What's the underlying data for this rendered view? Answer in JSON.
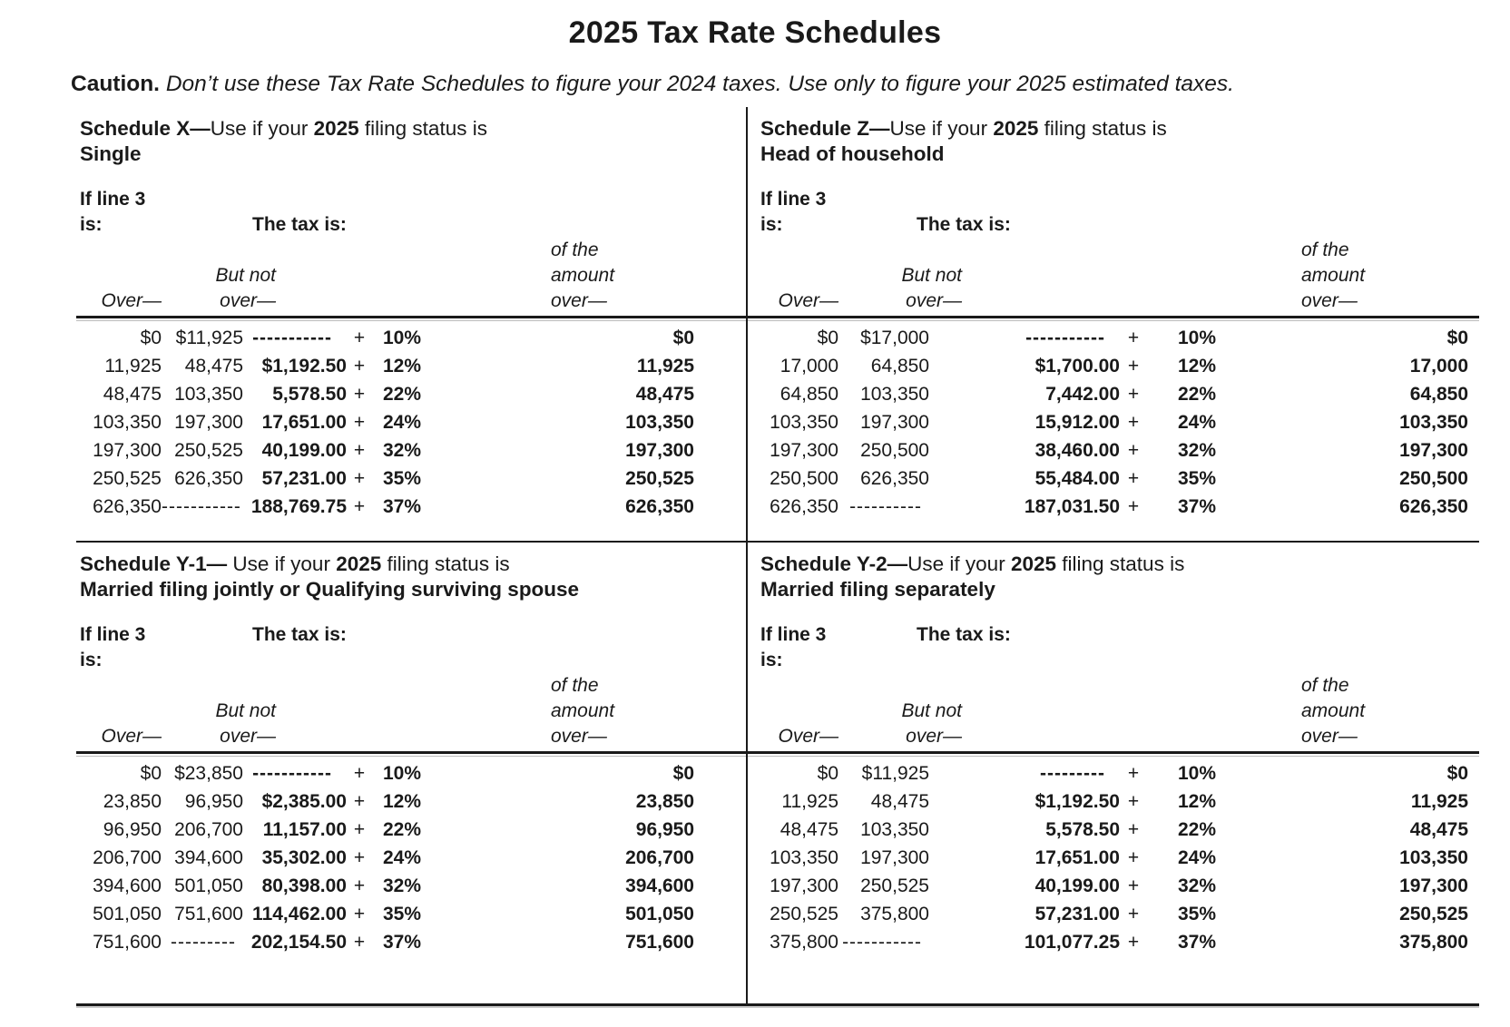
{
  "page": {
    "title": "2025 Tax Rate Schedules",
    "caution_label": "Caution.",
    "caution_text": "Don’t use these Tax Rate Schedules to figure your 2024 taxes. Use only to figure your 2025 estimated taxes."
  },
  "labels": {
    "if_line3_line1": "If line 3",
    "if_line3_line2": "is:",
    "tax_is": "The tax is:",
    "over": "Over—",
    "but_not_line1": "But not",
    "but_not_line2": "over—",
    "amount_line1": "of the",
    "amount_line2": "amount",
    "amount_line3": "over—",
    "plus": "+"
  },
  "schedules": [
    {
      "id": "schedule-x",
      "title_prefix": "Schedule X—",
      "title_mid": "Use if your ",
      "title_year": "2025",
      "title_suffix": " filing status is",
      "status": "Single",
      "rows": [
        {
          "over": "$0",
          "but_not": "$11,925",
          "tax": "-----------",
          "pct": "10%",
          "amount": "$0"
        },
        {
          "over": "11,925",
          "but_not": "48,475",
          "tax": "$1,192.50",
          "pct": "12%",
          "amount": "11,925"
        },
        {
          "over": "48,475",
          "but_not": "103,350",
          "tax": "5,578.50",
          "pct": "22%",
          "amount": "48,475"
        },
        {
          "over": "103,350",
          "but_not": "197,300",
          "tax": "17,651.00",
          "pct": "24%",
          "amount": "103,350"
        },
        {
          "over": "197,300",
          "but_not": "250,525",
          "tax": "40,199.00",
          "pct": "32%",
          "amount": "197,300"
        },
        {
          "over": "250,525",
          "but_not": "626,350",
          "tax": "57,231.00",
          "pct": "35%",
          "amount": "250,525"
        },
        {
          "over": "626,350",
          "but_not": "-----------",
          "tax": "188,769.75",
          "pct": "37%",
          "amount": "626,350"
        }
      ]
    },
    {
      "id": "schedule-z",
      "title_prefix": "Schedule Z—",
      "title_mid": "Use if your ",
      "title_year": "2025",
      "title_suffix": " filing status is",
      "status": "Head of household",
      "rows": [
        {
          "over": "$0",
          "but_not": "$17,000",
          "tax": "-----------",
          "pct": "10%",
          "amount": "$0"
        },
        {
          "over": "17,000",
          "but_not": "64,850",
          "tax": "$1,700.00",
          "pct": "12%",
          "amount": "17,000"
        },
        {
          "over": "64,850",
          "but_not": "103,350",
          "tax": "7,442.00",
          "pct": "22%",
          "amount": "64,850"
        },
        {
          "over": "103,350",
          "but_not": "197,300",
          "tax": "15,912.00",
          "pct": "24%",
          "amount": "103,350"
        },
        {
          "over": "197,300",
          "but_not": "250,500",
          "tax": "38,460.00",
          "pct": "32%",
          "amount": "197,300"
        },
        {
          "over": "250,500",
          "but_not": "626,350",
          "tax": "55,484.00",
          "pct": "35%",
          "amount": "250,500"
        },
        {
          "over": "626,350",
          "but_not": "----------",
          "tax": "187,031.50",
          "pct": "37%",
          "amount": "626,350"
        }
      ]
    },
    {
      "id": "schedule-y1",
      "title_prefix": "Schedule Y-1—",
      "title_mid": " Use if your ",
      "title_year": "2025",
      "title_suffix": " filing status is",
      "status": "Married filing jointly or Qualifying surviving spouse",
      "rows": [
        {
          "over": "$0",
          "but_not": "$23,850",
          "tax": "-----------",
          "pct": "10%",
          "amount": "$0"
        },
        {
          "over": "23,850",
          "but_not": "96,950",
          "tax": "$2,385.00",
          "pct": "12%",
          "amount": "23,850"
        },
        {
          "over": "96,950",
          "but_not": "206,700",
          "tax": "11,157.00",
          "pct": "22%",
          "amount": "96,950"
        },
        {
          "over": "206,700",
          "but_not": "394,600",
          "tax": "35,302.00",
          "pct": "24%",
          "amount": "206,700"
        },
        {
          "over": "394,600",
          "but_not": "501,050",
          "tax": "80,398.00",
          "pct": "32%",
          "amount": "394,600"
        },
        {
          "over": "501,050",
          "but_not": "751,600",
          "tax": "114,462.00",
          "pct": "35%",
          "amount": "501,050"
        },
        {
          "over": "751,600",
          "but_not": "---------",
          "tax": "202,154.50",
          "pct": "37%",
          "amount": "751,600"
        }
      ]
    },
    {
      "id": "schedule-y2",
      "title_prefix": "Schedule Y-2—",
      "title_mid": "Use if your ",
      "title_year": "2025",
      "title_suffix": " filing status is",
      "status": "Married filing separately",
      "rows": [
        {
          "over": "$0",
          "but_not": "$11,925",
          "tax": "---------",
          "pct": "10%",
          "amount": "$0"
        },
        {
          "over": "11,925",
          "but_not": "48,475",
          "tax": "$1,192.50",
          "pct": "12%",
          "amount": "11,925"
        },
        {
          "over": "48,475",
          "but_not": "103,350",
          "tax": "5,578.50",
          "pct": "22%",
          "amount": "48,475"
        },
        {
          "over": "103,350",
          "but_not": "197,300",
          "tax": "17,651.00",
          "pct": "24%",
          "amount": "103,350"
        },
        {
          "over": "197,300",
          "but_not": "250,525",
          "tax": "40,199.00",
          "pct": "32%",
          "amount": "197,300"
        },
        {
          "over": "250,525",
          "but_not": "375,800",
          "tax": "57,231.00",
          "pct": "35%",
          "amount": "250,525"
        },
        {
          "over": "375,800",
          "but_not": "-----------",
          "tax": "101,077.25",
          "pct": "37%",
          "amount": "375,800"
        }
      ]
    }
  ]
}
